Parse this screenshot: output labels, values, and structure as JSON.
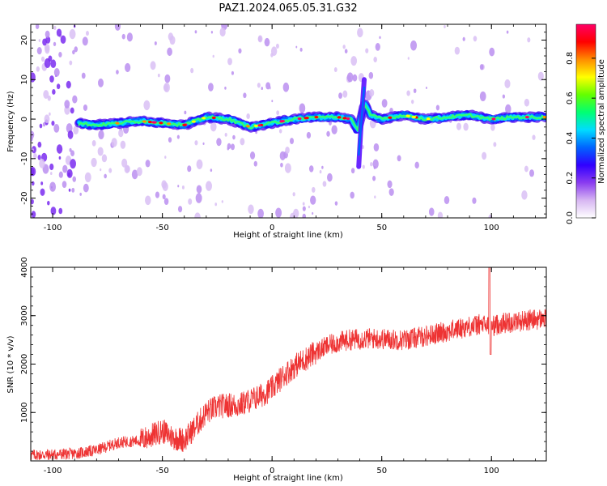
{
  "title": "PAZ1.2024.065.05.31.G32",
  "chart_data": [
    {
      "type": "heatmap",
      "xlabel": "Height of straight line (km)",
      "ylabel": "Frequency (Hz)",
      "xlim": [
        -110,
        125
      ],
      "ylim": [
        -25,
        24
      ],
      "x_ticks": [
        -100,
        -50,
        0,
        50,
        100
      ],
      "y_ticks": [
        -20,
        -10,
        0,
        10,
        20
      ],
      "colorbar": {
        "label": "Normalized spectral amplitude",
        "range": [
          0.0,
          0.97
        ],
        "ticks": [
          0.0,
          0.2,
          0.4,
          0.6,
          0.8
        ],
        "colormap": [
          "#ffffff",
          "#d7b6f2",
          "#8a3cf0",
          "#3000ff",
          "#0064ff",
          "#00dcff",
          "#00ff73",
          "#64ff00",
          "#ffff00",
          "#ff8c00",
          "#ff0000",
          "#ff0066"
        ]
      },
      "signal_track": {
        "description_values": "frequency center (Hz) along height",
        "x": [
          -90,
          -80,
          -70,
          -60,
          -50,
          -40,
          -30,
          -20,
          -10,
          0,
          10,
          20,
          30,
          36,
          39,
          42,
          45,
          50,
          60,
          70,
          80,
          90,
          100,
          110,
          125
        ],
        "y": [
          -1.0,
          -1.5,
          -1.0,
          -0.5,
          -1.0,
          -1.5,
          0.5,
          0.0,
          -2.0,
          -1.0,
          0.0,
          0.5,
          0.5,
          0.0,
          -3.0,
          4.0,
          1.0,
          0.0,
          1.0,
          0.0,
          0.5,
          1.0,
          0.0,
          0.5,
          0.5
        ]
      }
    },
    {
      "type": "line",
      "xlabel": "Height of straight line (km)",
      "ylabel": "SNR (10 * v/v)",
      "xlim": [
        -110,
        125
      ],
      "ylim": [
        0,
        4000
      ],
      "x_ticks": [
        -100,
        -50,
        0,
        50,
        100
      ],
      "y_ticks": [
        1000,
        2000,
        3000,
        4000
      ],
      "series": [
        {
          "color": "#ee3333",
          "x": [
            -110,
            -100,
            -90,
            -80,
            -75,
            -70,
            -60,
            -55,
            -50,
            -45,
            -40,
            -35,
            -30,
            -25,
            -20,
            -15,
            -10,
            -5,
            0,
            5,
            10,
            15,
            20,
            25,
            30,
            35,
            40,
            45,
            50,
            60,
            70,
            80,
            90,
            95,
            100,
            105,
            110,
            115,
            120,
            125
          ],
          "y": [
            120,
            130,
            150,
            220,
            300,
            380,
            420,
            520,
            620,
            480,
            430,
            700,
            1000,
            1120,
            1150,
            1150,
            1250,
            1350,
            1500,
            1750,
            1950,
            2100,
            2250,
            2370,
            2450,
            2500,
            2520,
            2530,
            2520,
            2500,
            2580,
            2680,
            2780,
            2820,
            2780,
            2850,
            2870,
            2900,
            2920,
            2940
          ]
        }
      ]
    }
  ]
}
